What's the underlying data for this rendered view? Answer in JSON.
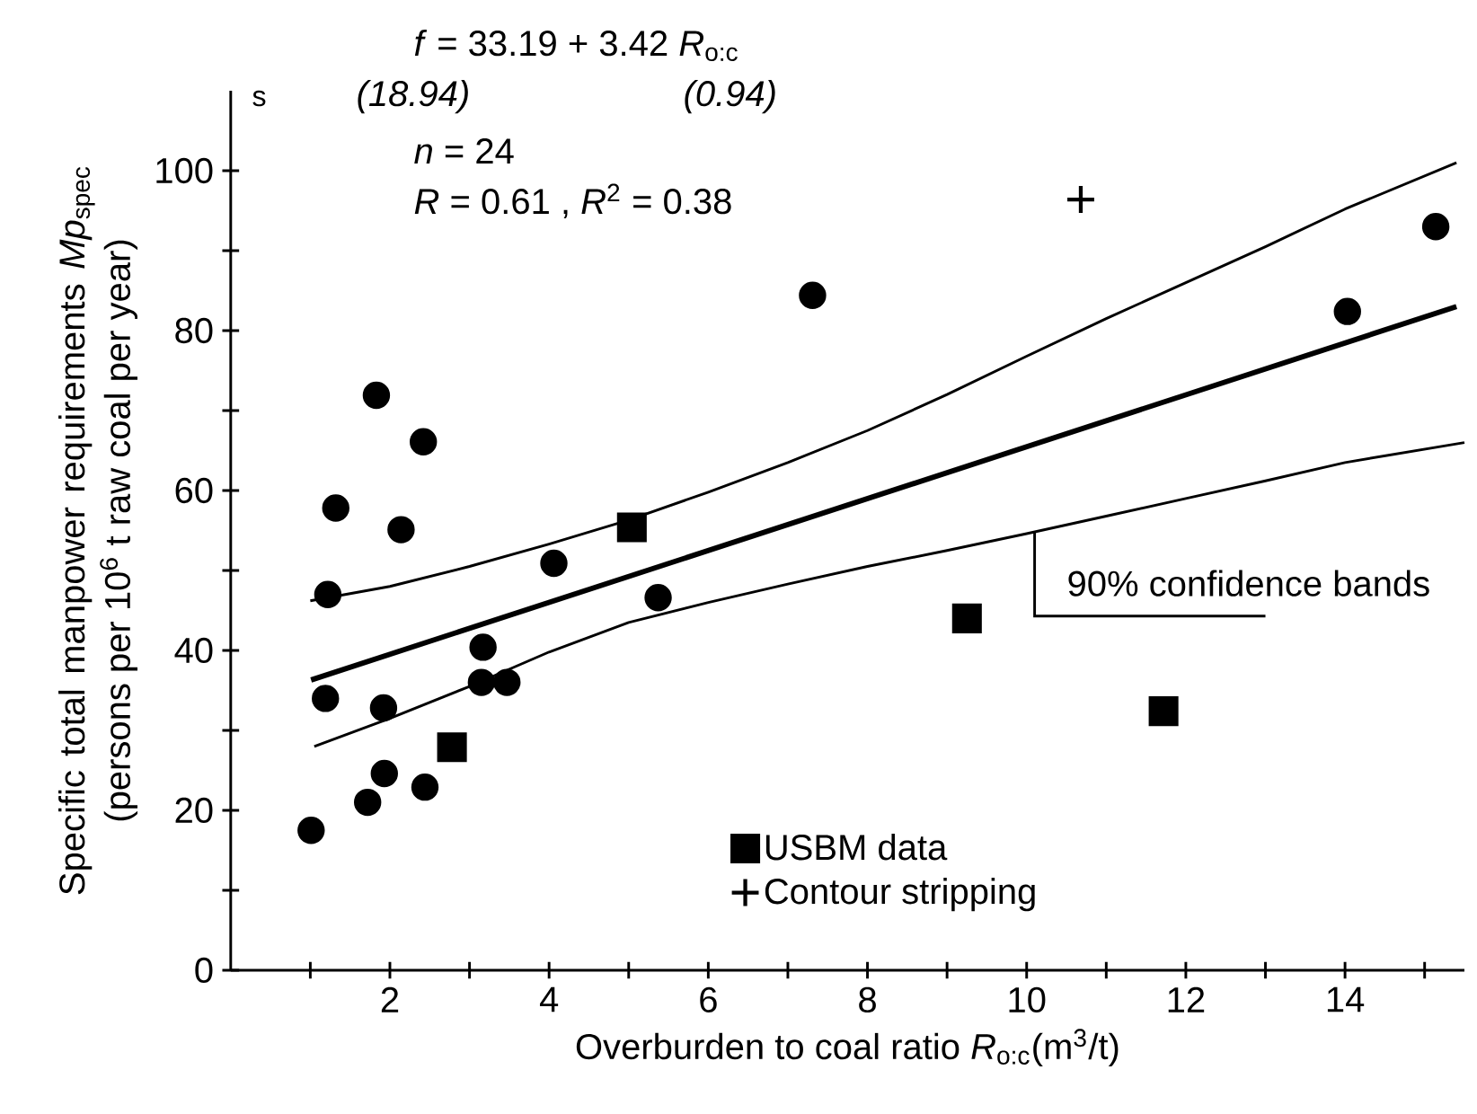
{
  "chart_data": {
    "type": "scatter",
    "xlabel": "Overburden to coal ratio *R*$_{o:c}$(m$^{3}$/t)",
    "ylabel": "Specific total manpower requirements *Mp*$_{spec}$ (persons per 10$^{6}$ t raw coal per year)",
    "annotations": [
      "*f* = 33.19 + 3.42 *R*$_{o:c}$",
      "s",
      "(18.94)",
      "(0.94)",
      "*n* = 24",
      "*R* = 0.61 ,  *R*$^{2}$ = 0.38",
      {
        "text": "90% confidence bands",
        "x": 10.1,
        "y": 54.8
      }
    ],
    "xlim": [
      0,
      15.5
    ],
    "ylim": [
      0,
      110
    ],
    "xticks": [
      {
        "value": 1,
        "label": null
      },
      2,
      {
        "value": 3,
        "label": null
      },
      4,
      {
        "value": 5,
        "label": null
      },
      6,
      {
        "value": 7,
        "label": null
      },
      8,
      {
        "value": 9,
        "label": null
      },
      10,
      {
        "value": 11,
        "label": null
      },
      12,
      {
        "value": 13,
        "label": null
      },
      14,
      {
        "value": 15,
        "label": null
      }
    ],
    "yticks": [
      0,
      {
        "value": 10,
        "label": null
      },
      20,
      {
        "value": 30,
        "label": null
      },
      40,
      {
        "value": 50,
        "label": null
      },
      60,
      {
        "value": 70,
        "label": null
      },
      80,
      {
        "value": 90,
        "label": null
      },
      100
    ],
    "legend": "bottom",
    "series": [
      {
        "type": "scatter",
        "color": "#000000",
        "marker": "circle",
        "x": [
          1.83,
          2.42,
          1.32,
          2.14,
          4.06,
          1.22,
          5.37,
          3.17,
          1.19,
          1.92,
          3.15,
          3.47,
          1.93,
          1.72,
          2.44,
          1.01,
          7.31,
          15.14,
          14.03
        ],
        "values": [
          71.9,
          66.1,
          57.8,
          55.1,
          50.9,
          47.0,
          46.6,
          40.4,
          34.0,
          32.8,
          36.0,
          36.0,
          24.6,
          21.0,
          22.9,
          17.5,
          84.4,
          93.0,
          82.4
        ]
      },
      {
        "type": "scatter",
        "name": "USBM data",
        "color": "#000000",
        "marker": "square",
        "x": [
          5.04,
          2.78,
          9.25,
          11.72
        ],
        "values": [
          55.4,
          27.9,
          44.0,
          32.4
        ]
      },
      {
        "type": "scatter",
        "name": "Contour stripping",
        "color": "#000000",
        "marker": "cross",
        "x": [
          10.68
        ],
        "values": [
          96.4
        ]
      },
      {
        "type": "line",
        "color": "#000000",
        "line_style": "solid",
        "x": [
          1.01,
          15.4
        ],
        "values": [
          36.3,
          83.0
        ]
      },
      {
        "type": "line",
        "color": "#000000",
        "line_style": "solid",
        "x": [
          1.0,
          2,
          3,
          4,
          5,
          6,
          7,
          8,
          9,
          10,
          11,
          12,
          13,
          14,
          15.4
        ],
        "values": [
          46.2,
          48.0,
          50.5,
          53.3,
          56.3,
          59.8,
          63.5,
          67.5,
          72.0,
          76.8,
          81.5,
          86.0,
          90.5,
          95.2,
          101.0
        ]
      },
      {
        "type": "line",
        "color": "#000000",
        "line_style": "solid",
        "x": [
          1.05,
          2,
          3,
          4,
          5,
          6,
          7,
          8,
          9,
          10,
          11,
          12,
          13,
          14,
          15.5
        ],
        "values": [
          28.0,
          31.5,
          35.5,
          39.8,
          43.5,
          46.0,
          48.3,
          50.5,
          52.5,
          54.6,
          56.8,
          59.0,
          61.2,
          63.5,
          66.0
        ]
      }
    ]
  }
}
